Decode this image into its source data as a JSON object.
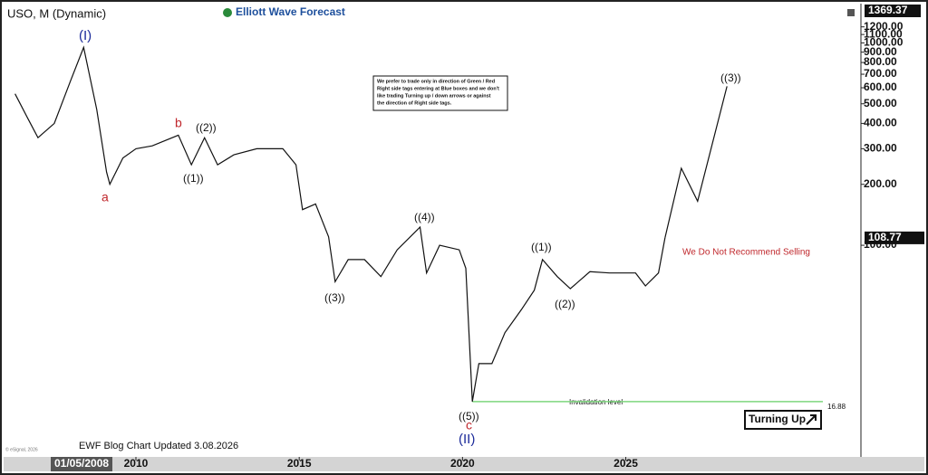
{
  "chart_data": {
    "type": "line",
    "title": "USO, M (Dynamic)",
    "brand": "Elliott Wave Forecast",
    "log_scale": true,
    "xlim": [
      2006.06,
      2032.2
    ],
    "ylim": [
      9,
      1500
    ],
    "xticks": [
      2010,
      2015,
      2020,
      2025
    ],
    "yticks": [
      {
        "value": 100,
        "label": "100.00"
      },
      {
        "value": 200,
        "label": "200.00"
      },
      {
        "value": 300,
        "label": "300.00"
      },
      {
        "value": 400,
        "label": "400.00"
      },
      {
        "value": 500,
        "label": "500.00"
      },
      {
        "value": 600,
        "label": "600.00"
      },
      {
        "value": 700,
        "label": "700.00"
      },
      {
        "value": 800,
        "label": "800.00"
      },
      {
        "value": 900,
        "label": "900.00"
      },
      {
        "value": 1000,
        "label": "1000.00"
      },
      {
        "value": 1100,
        "label": "1100.00"
      },
      {
        "value": 1200,
        "label": "1200.00"
      }
    ],
    "top_price": 1369.37,
    "last_price": 108.77,
    "invalidation": 16.88,
    "series": [
      {
        "color": "#111111",
        "x": [
          2006.3,
          2006.7,
          2007.0,
          2007.5,
          2008.0,
          2008.4,
          2008.8,
          2009.1,
          2009.2,
          2009.6,
          2010.0,
          2010.5,
          2011.3,
          2011.7,
          2012.1,
          2012.5,
          2013.0,
          2013.7,
          2014.5,
          2014.9,
          2015.1,
          2015.5,
          2015.9,
          2016.1,
          2016.5,
          2017.0,
          2017.5,
          2018.0,
          2018.7,
          2018.9,
          2019.3,
          2019.9,
          2020.1,
          2020.3,
          2020.5,
          2020.9,
          2021.3,
          2021.8,
          2022.2,
          2022.45,
          2022.9,
          2023.3,
          2023.9,
          2024.5,
          2025.3,
          2025.6,
          2026.0,
          2026.2
        ],
        "values": [
          560,
          420,
          340,
          400,
          650,
          950,
          470,
          230,
          200,
          270,
          300,
          310,
          350,
          250,
          340,
          250,
          280,
          300,
          300,
          250,
          150,
          160,
          110,
          66,
          85,
          85,
          70,
          95,
          123,
          73,
          100,
          95,
          77,
          16.88,
          26,
          26,
          37,
          48,
          60,
          85,
          70,
          61,
          74,
          73,
          73,
          63,
          73,
          108.77
        ]
      },
      {
        "color": "#111111",
        "x": [
          2026.2,
          2026.7,
          2027.2,
          2028.1
        ],
        "values": [
          108.77,
          240,
          165,
          610
        ]
      }
    ],
    "annotations": {
      "wave_I": "(I)",
      "wave_II": "(II)",
      "a": "a",
      "b": "b",
      "c": "c",
      "w1_a": "((1))",
      "w2_a": "((2))",
      "w3": "((3))",
      "w4": "((4))",
      "w5": "((5))",
      "w1_b": "((1))",
      "w2_b": "((2))",
      "w3_target": "((3))"
    },
    "note": [
      "We prefer to trade only in direction of Green / Red",
      "Right side tags entering at Blue boxes and we don't",
      "like trading Turning up / down arrows or against",
      "the direction of Right side tags."
    ],
    "warning": "We Do Not Recommend Selling",
    "invalidation_label": "Invalidation level",
    "turning": "Turning Up",
    "footer": "EWF Blog Chart Updated 3.08.2026",
    "cursor_date": "01/05/2008",
    "copyright": "© eSignal, 2026"
  }
}
